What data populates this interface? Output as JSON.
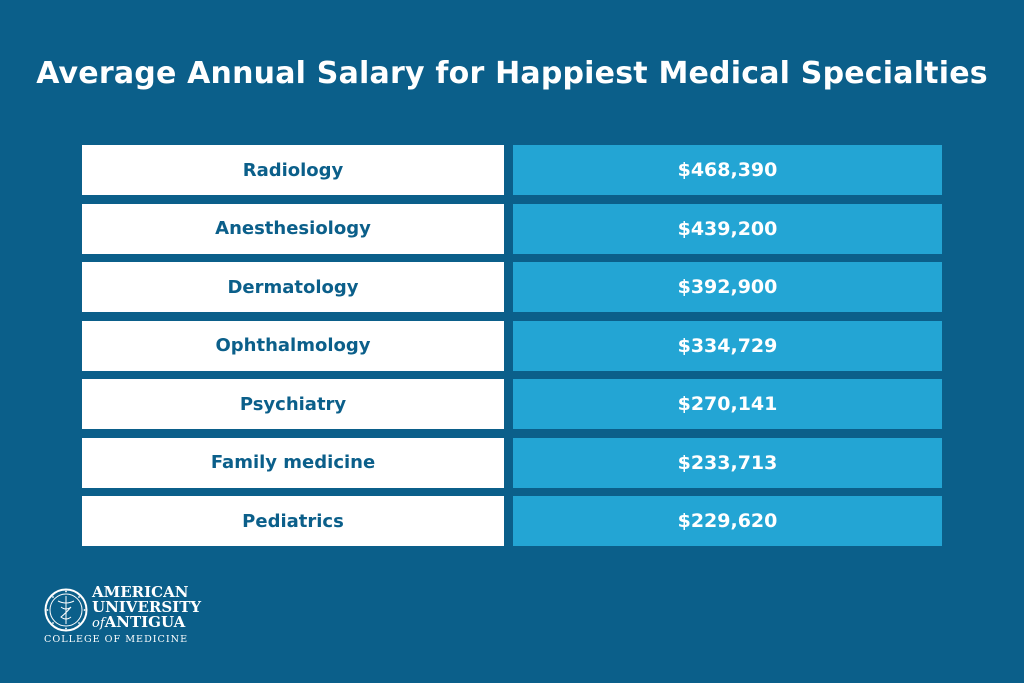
{
  "chart_data": {
    "type": "table",
    "title": "Average Annual Salary for Happiest Medical Specialties",
    "rows": [
      {
        "label": "Radiology",
        "value": "$468,390"
      },
      {
        "label": "Anesthesiology",
        "value": "$439,200"
      },
      {
        "label": "Dermatology",
        "value": "$392,900"
      },
      {
        "label": "Ophthalmology",
        "value": "$334,729"
      },
      {
        "label": "Psychiatry",
        "value": "$270,141"
      },
      {
        "label": "Family medicine",
        "value": "$233,713"
      },
      {
        "label": "Pediatrics",
        "value": "$229,620"
      }
    ]
  },
  "logo": {
    "line1": "AMERICAN",
    "line2": "UNIVERSITY",
    "line3_of": "of",
    "line3": "ANTIGUA",
    "subtitle": "COLLEGE OF MEDICINE",
    "icon": "caduceus-seal-icon"
  },
  "colors": {
    "background": "#0b5f8a",
    "label_cell": "#ffffff",
    "value_cell": "#23a5d4",
    "label_text": "#0b5f8a"
  }
}
